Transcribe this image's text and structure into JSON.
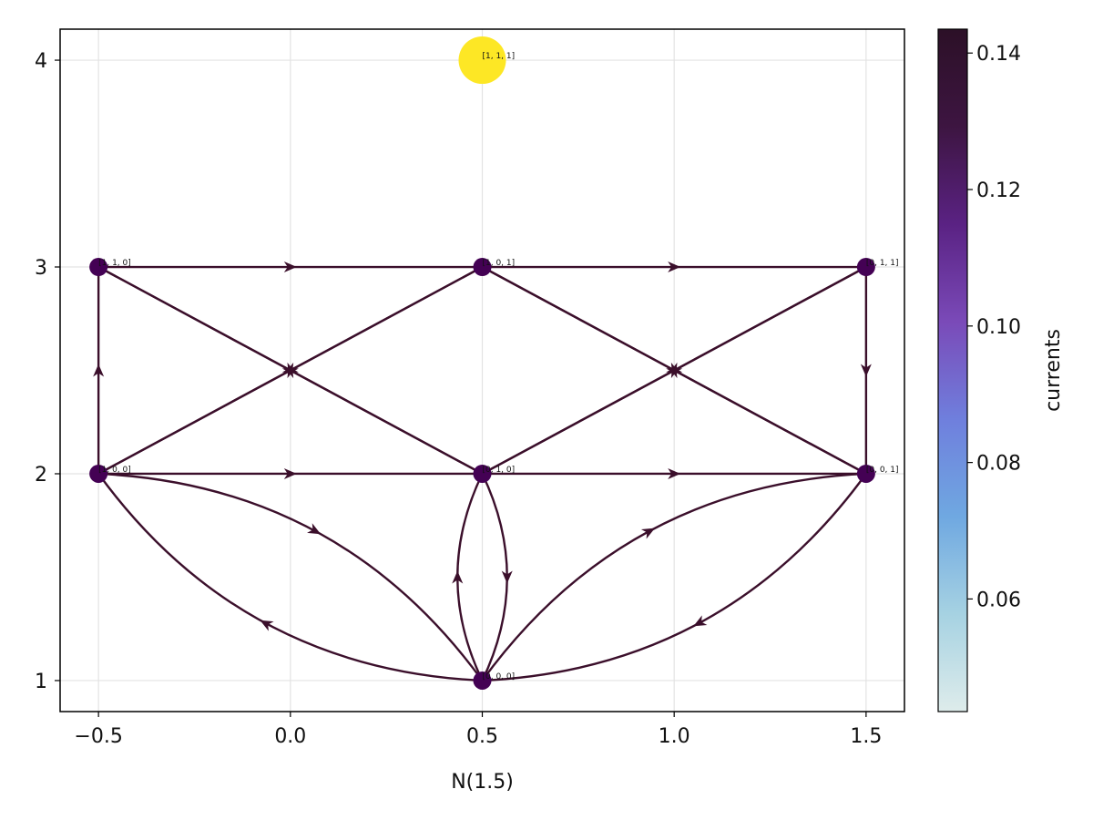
{
  "chart_data": {
    "type": "network",
    "xlabel": "N(1.5)",
    "ylabel": "",
    "xlim": [
      -0.6,
      1.6
    ],
    "ylim": [
      0.85,
      4.15
    ],
    "x_ticks": [
      -0.5,
      0.0,
      0.5,
      1.0,
      1.5
    ],
    "x_tick_labels": [
      "−0.5",
      "0.0",
      "0.5",
      "1.0",
      "1.5"
    ],
    "y_ticks": [
      1,
      2,
      3,
      4
    ],
    "y_tick_labels": [
      "1",
      "2",
      "3",
      "4"
    ],
    "grid": true,
    "nodes": [
      {
        "label": "[0, 0, 0]",
        "x": 0.5,
        "y": 1,
        "color": "#440154",
        "highlight": false
      },
      {
        "label": "[1, 0, 0]",
        "x": -0.5,
        "y": 2,
        "color": "#440154",
        "highlight": false
      },
      {
        "label": "[0, 1, 0]",
        "x": 0.5,
        "y": 2,
        "color": "#440154",
        "highlight": false
      },
      {
        "label": "[0, 0, 1]",
        "x": 1.5,
        "y": 2,
        "color": "#440154",
        "highlight": false
      },
      {
        "label": "[1, 1, 0]",
        "x": -0.5,
        "y": 3,
        "color": "#440154",
        "highlight": false
      },
      {
        "label": "[1, 0, 1]",
        "x": 0.5,
        "y": 3,
        "color": "#440154",
        "highlight": false
      },
      {
        "label": "[0, 1, 1]",
        "x": 1.5,
        "y": 3,
        "color": "#440154",
        "highlight": false
      },
      {
        "label": "[1, 1, 1]",
        "x": 0.5,
        "y": 4,
        "color": "#fde725",
        "highlight": true
      }
    ],
    "edges": [
      {
        "from": 1,
        "to": 4,
        "bend": 0
      },
      {
        "from": 1,
        "to": 2,
        "bend": 0
      },
      {
        "from": 4,
        "to": 5,
        "bend": 0
      },
      {
        "from": 5,
        "to": 6,
        "bend": 0
      },
      {
        "from": 6,
        "to": 3,
        "bend": 0
      },
      {
        "from": 2,
        "to": 3,
        "bend": 0
      },
      {
        "from": 1,
        "to": 5,
        "bend": 0
      },
      {
        "from": 5,
        "to": 1,
        "bend": 0
      },
      {
        "from": 4,
        "to": 2,
        "bend": 0
      },
      {
        "from": 2,
        "to": 4,
        "bend": 0
      },
      {
        "from": 2,
        "to": 6,
        "bend": 0
      },
      {
        "from": 6,
        "to": 2,
        "bend": 0
      },
      {
        "from": 5,
        "to": 3,
        "bend": 0
      },
      {
        "from": 3,
        "to": 5,
        "bend": 0
      },
      {
        "from": 1,
        "to": 0,
        "bend": 0.12
      },
      {
        "from": 0,
        "to": 1,
        "bend": 0.12
      },
      {
        "from": 2,
        "to": 0,
        "bend": 0.12
      },
      {
        "from": 0,
        "to": 2,
        "bend": 0.12
      },
      {
        "from": 0,
        "to": 3,
        "bend": 0.12
      },
      {
        "from": 3,
        "to": 0,
        "bend": 0.12
      }
    ],
    "edge_color": "#3b0f2b",
    "colorbar": {
      "label": "currents",
      "min": 0.0435,
      "max": 0.1435,
      "ticks": [
        0.06,
        0.08,
        0.1,
        0.12,
        0.14
      ],
      "tick_labels": [
        "0.06",
        "0.08",
        "0.10",
        "0.12",
        "0.14"
      ],
      "colors": [
        "#deeceb",
        "#a6d2e2",
        "#6fa8e1",
        "#6f7fdd",
        "#7a4ab8",
        "#5a2283",
        "#3d1541",
        "#2c1027"
      ]
    }
  }
}
